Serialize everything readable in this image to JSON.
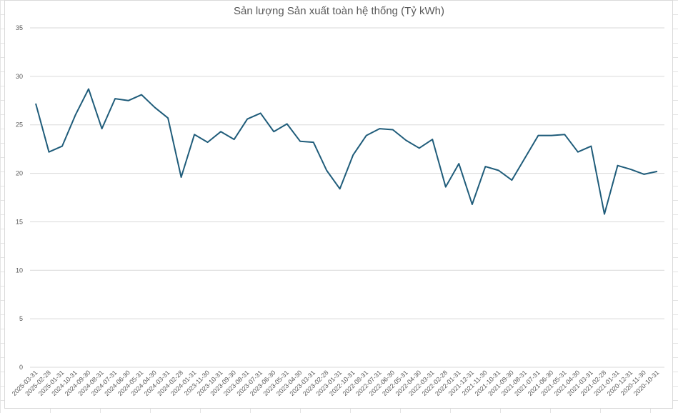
{
  "chart_data": {
    "type": "line",
    "title": "Sản lượng Sản xuất toàn hệ thống (Tỷ kWh)",
    "xlabel": "",
    "ylabel": "",
    "ylim": [
      0,
      35
    ],
    "yticks": [
      0,
      5,
      10,
      15,
      20,
      25,
      30,
      35
    ],
    "grid": true,
    "legend": "none",
    "line_color": "#1f5c7a",
    "categories": [
      "2025-03-31",
      "2025-02-28",
      "2025-01-31",
      "2024-10-31",
      "2024-09-30",
      "2024-08-31",
      "2024-07-31",
      "2024-06-30",
      "2024-05-31",
      "2024-04-30",
      "2024-03-31",
      "2024-02-28",
      "2024-01-31",
      "2023-11-30",
      "2023-10-31",
      "2023-09-30",
      "2023-08-31",
      "2023-07-31",
      "2023-06-30",
      "2023-05-31",
      "2023-04-30",
      "2023-03-31",
      "2023-02-28",
      "2023-01-31",
      "2022-10-31",
      "2022-08-31",
      "2022-07-31",
      "2022-06-30",
      "2022-05-31",
      "2022-04-30",
      "2022-03-31",
      "2022-02-28",
      "2022-01-31",
      "2021-12-31",
      "2021-11-30",
      "2021-10-31",
      "2021-09-30",
      "2021-08-31",
      "2021-07-31",
      "2021-06-30",
      "2021-05-31",
      "2021-04-30",
      "2021-03-31",
      "2021-02-28",
      "2021-01-31",
      "2020-12-31",
      "2020-11-30",
      "2020-10-31"
    ],
    "values": [
      27.2,
      22.2,
      22.8,
      26.0,
      28.7,
      24.6,
      27.7,
      27.5,
      28.1,
      26.8,
      25.7,
      19.6,
      24.0,
      23.2,
      24.3,
      23.5,
      25.6,
      26.2,
      24.3,
      25.1,
      23.3,
      23.2,
      20.3,
      18.4,
      21.9,
      23.9,
      24.6,
      24.5,
      23.4,
      22.6,
      23.5,
      18.6,
      21.0,
      16.8,
      20.7,
      20.3,
      19.3,
      21.6,
      23.9,
      23.9,
      24.0,
      22.2,
      22.8,
      15.8,
      20.8,
      20.4,
      19.9,
      20.2
    ]
  }
}
